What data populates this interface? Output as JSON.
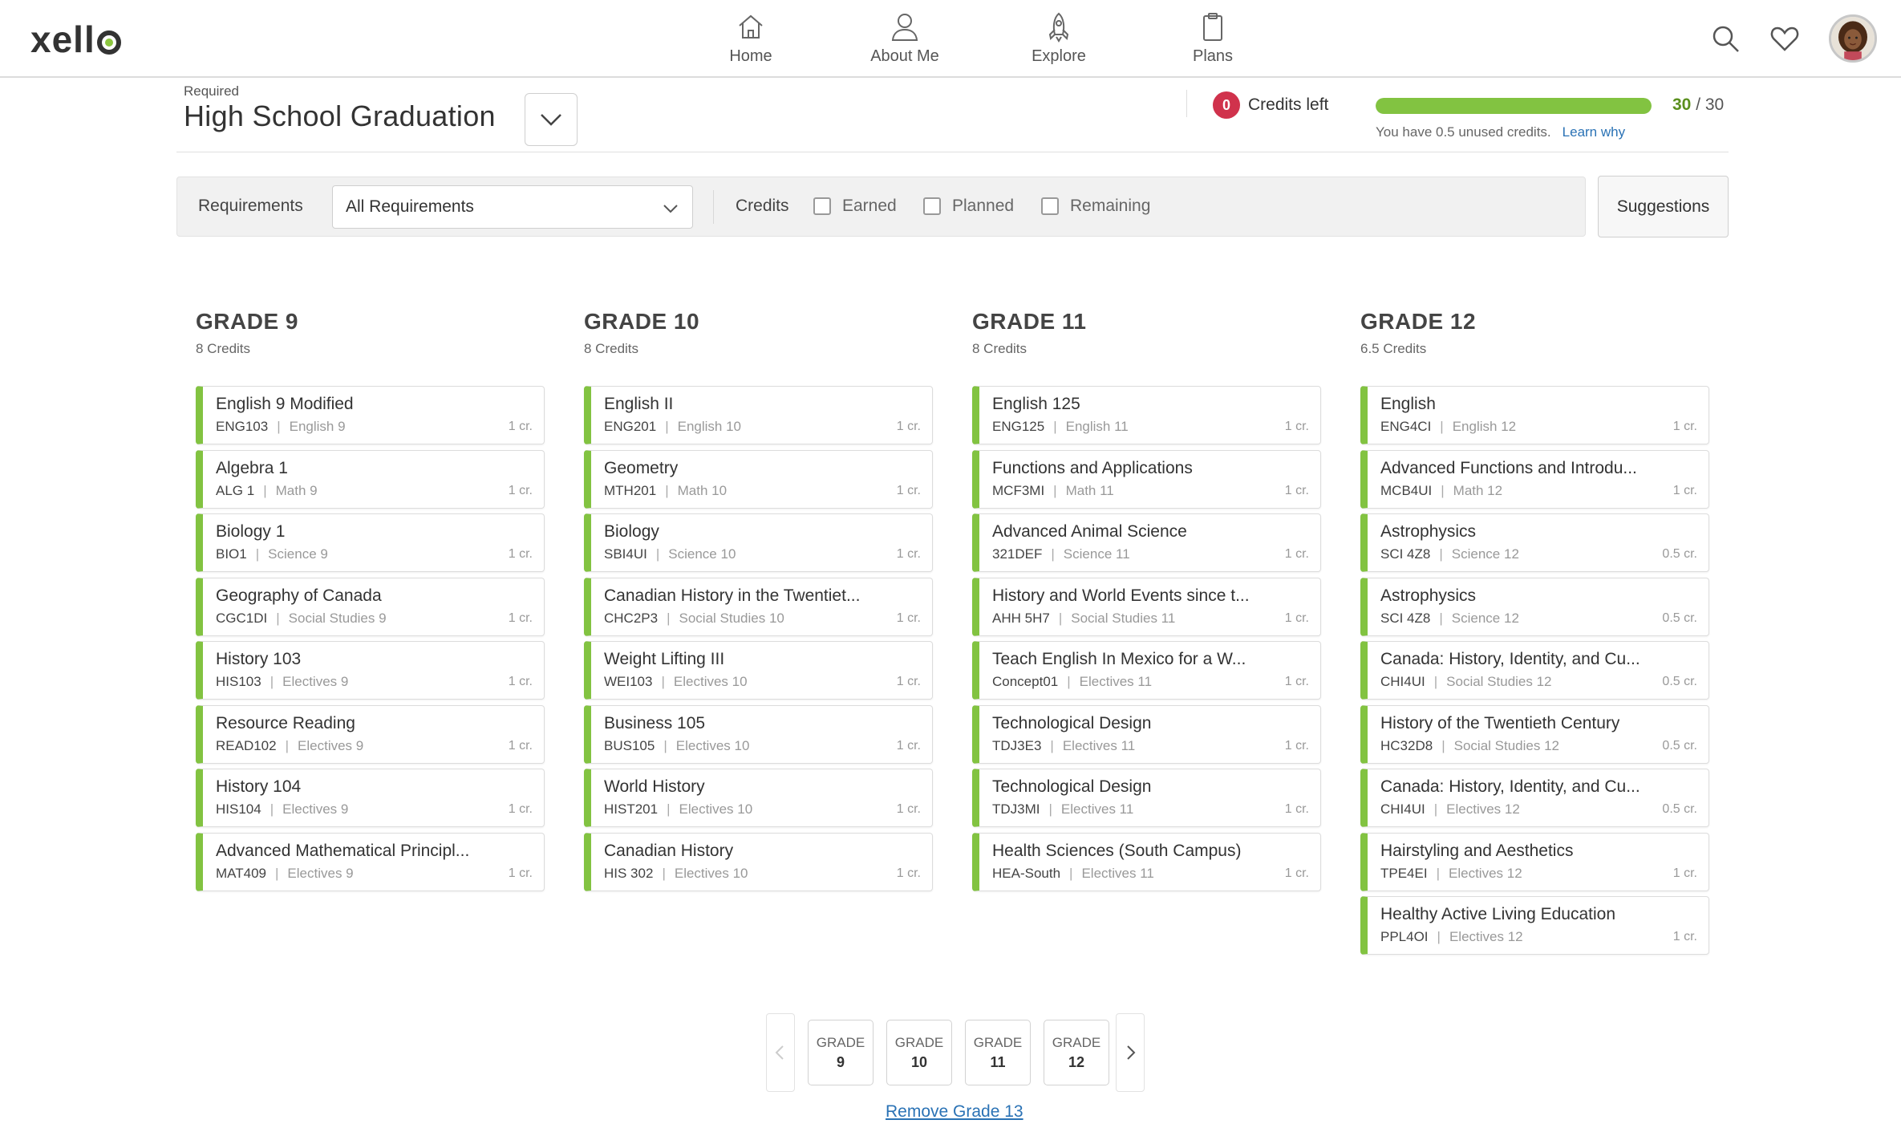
{
  "brand": {
    "name": "xell",
    "accent": "#8cc63f"
  },
  "nav": [
    {
      "label": "Home",
      "icon": "home-icon"
    },
    {
      "label": "About Me",
      "icon": "user-icon"
    },
    {
      "label": "Explore",
      "icon": "rocket-icon"
    },
    {
      "label": "Plans",
      "icon": "clipboard-icon"
    }
  ],
  "requirement": {
    "small_label": "Required",
    "title": "High School Graduation"
  },
  "credits": {
    "badge": "0",
    "left_label": "Credits left",
    "earned": "30",
    "total": "/ 30",
    "progress_fraction": 1.0,
    "unused_text": "You have 0.5 unused credits.",
    "learn_why": "Learn why"
  },
  "filters": {
    "requirements_label": "Requirements",
    "requirements_value": "All Requirements",
    "credits_label": "Credits",
    "earned": "Earned",
    "planned": "Planned",
    "remaining": "Remaining",
    "suggestions": "Suggestions"
  },
  "grades": [
    {
      "title": "GRADE 9",
      "credits": "8 Credits",
      "courses": [
        {
          "name": "English 9 Modified",
          "code": "ENG103",
          "sub": "English 9",
          "cr": "1 cr."
        },
        {
          "name": "Algebra 1",
          "code": "ALG 1",
          "sub": "Math 9",
          "cr": "1 cr."
        },
        {
          "name": "Biology 1",
          "code": "BIO1",
          "sub": "Science 9",
          "cr": "1 cr."
        },
        {
          "name": "Geography of Canada",
          "code": "CGC1DI",
          "sub": "Social Studies 9",
          "cr": "1 cr."
        },
        {
          "name": "History 103",
          "code": "HIS103",
          "sub": "Electives 9",
          "cr": "1 cr."
        },
        {
          "name": "Resource Reading",
          "code": "READ102",
          "sub": "Electives 9",
          "cr": "1 cr."
        },
        {
          "name": "History 104",
          "code": "HIS104",
          "sub": "Electives 9",
          "cr": "1 cr."
        },
        {
          "name": "Advanced Mathematical Principl...",
          "code": "MAT409",
          "sub": "Electives 9",
          "cr": "1 cr."
        }
      ]
    },
    {
      "title": "GRADE 10",
      "credits": "8 Credits",
      "courses": [
        {
          "name": "English II",
          "code": "ENG201",
          "sub": "English 10",
          "cr": "1 cr."
        },
        {
          "name": "Geometry",
          "code": "MTH201",
          "sub": "Math 10",
          "cr": "1 cr."
        },
        {
          "name": "Biology",
          "code": "SBI4UI",
          "sub": "Science 10",
          "cr": "1 cr."
        },
        {
          "name": "Canadian History in the Twentiet...",
          "code": "CHC2P3",
          "sub": "Social Studies 10",
          "cr": "1 cr."
        },
        {
          "name": "Weight Lifting III",
          "code": "WEI103",
          "sub": "Electives 10",
          "cr": "1 cr."
        },
        {
          "name": "Business 105",
          "code": "BUS105",
          "sub": "Electives 10",
          "cr": "1 cr."
        },
        {
          "name": "World History",
          "code": "HIST201",
          "sub": "Electives 10",
          "cr": "1 cr."
        },
        {
          "name": "Canadian History",
          "code": "HIS 302",
          "sub": "Electives 10",
          "cr": "1 cr."
        }
      ]
    },
    {
      "title": "GRADE 11",
      "credits": "8 Credits",
      "courses": [
        {
          "name": "English 125",
          "code": "ENG125",
          "sub": "English 11",
          "cr": "1 cr."
        },
        {
          "name": "Functions and Applications",
          "code": "MCF3MI",
          "sub": "Math 11",
          "cr": "1 cr."
        },
        {
          "name": "Advanced Animal Science",
          "code": "321DEF",
          "sub": "Science 11",
          "cr": "1 cr."
        },
        {
          "name": "History and World Events since t...",
          "code": "AHH 5H7",
          "sub": "Social Studies 11",
          "cr": "1 cr."
        },
        {
          "name": "Teach English In Mexico for a W...",
          "code": "Concept01",
          "sub": "Electives 11",
          "cr": "1 cr."
        },
        {
          "name": "Technological Design",
          "code": "TDJ3E3",
          "sub": "Electives 11",
          "cr": "1 cr."
        },
        {
          "name": "Technological Design",
          "code": "TDJ3MI",
          "sub": "Electives 11",
          "cr": "1 cr."
        },
        {
          "name": "Health Sciences (South Campus)",
          "code": "HEA-South",
          "sub": "Electives 11",
          "cr": "1 cr."
        }
      ]
    },
    {
      "title": "GRADE 12",
      "credits": "6.5 Credits",
      "courses": [
        {
          "name": "English",
          "code": "ENG4CI",
          "sub": "English 12",
          "cr": "1 cr."
        },
        {
          "name": "Advanced Functions and Introdu...",
          "code": "MCB4UI",
          "sub": "Math 12",
          "cr": "1 cr."
        },
        {
          "name": "Astrophysics",
          "code": "SCI 4Z8",
          "sub": "Science 12",
          "cr": "0.5 cr."
        },
        {
          "name": "Astrophysics",
          "code": "SCI 4Z8",
          "sub": "Science 12",
          "cr": "0.5 cr."
        },
        {
          "name": "Canada: History, Identity, and Cu...",
          "code": "CHI4UI",
          "sub": "Social Studies 12",
          "cr": "0.5 cr."
        },
        {
          "name": "History of the Twentieth Century",
          "code": "HC32D8",
          "sub": "Social Studies 12",
          "cr": "0.5 cr."
        },
        {
          "name": "Canada: History, Identity, and Cu...",
          "code": "CHI4UI",
          "sub": "Electives 12",
          "cr": "0.5 cr."
        },
        {
          "name": "Hairstyling and Aesthetics",
          "code": "TPE4EI",
          "sub": "Electives 12",
          "cr": "1 cr."
        },
        {
          "name": "Healthy Active Living Education",
          "code": "PPL4OI",
          "sub": "Electives 12",
          "cr": "1 cr."
        }
      ]
    }
  ],
  "pager": {
    "buttons": [
      {
        "top": "GRADE",
        "num": "9"
      },
      {
        "top": "GRADE",
        "num": "10"
      },
      {
        "top": "GRADE",
        "num": "11"
      },
      {
        "top": "GRADE",
        "num": "12"
      }
    ],
    "remove_label": "Remove Grade 13"
  }
}
